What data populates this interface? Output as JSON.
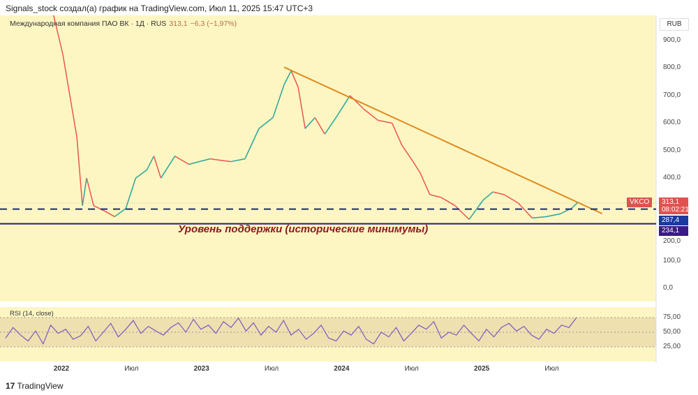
{
  "header": "Signals_stock создал(а) график на TradingView.com, Июл 11, 2025 15:47 UTC+3",
  "legend": {
    "name": "Международная компания ПАО ВК · 1Д · RUS",
    "price": "313,1",
    "change": "−6,3 (−1,97%)"
  },
  "currency": "RUB",
  "annotation": "Уровень поддержки (исторические минимумы)",
  "price_axis": [
    "900,0",
    "800,0",
    "700,0",
    "600,0",
    "500,0",
    "400,0",
    "200,0",
    "100,0",
    "0,0"
  ],
  "price_axis_values": [
    900,
    800,
    700,
    600,
    500,
    400,
    200,
    100,
    0
  ],
  "tags": {
    "ticker": "VKCO",
    "last": "313,1",
    "countdown": "08:02:21",
    "dashed_level": "287,4",
    "support_level": "234,1"
  },
  "rsi": {
    "label": "RSI (14, close)",
    "axis": [
      "75,00",
      "50,00",
      "25,00"
    ],
    "axis_values": [
      75,
      50,
      25
    ]
  },
  "time_axis": [
    {
      "t": "2022",
      "v": 2022.0,
      "b": true
    },
    {
      "t": "Июл",
      "v": 2022.5
    },
    {
      "t": "2023",
      "v": 2023.0,
      "b": true
    },
    {
      "t": "Июл",
      "v": 2023.5
    },
    {
      "t": "2024",
      "v": 2024.0,
      "b": true
    },
    {
      "t": "Июл",
      "v": 2024.5
    },
    {
      "t": "2025",
      "v": 2025.0,
      "b": true
    },
    {
      "t": "Июл",
      "v": 2025.5
    }
  ],
  "branding": "TradingView",
  "colors": {
    "bg": "#fdf6c3",
    "trend": "#e08a1e",
    "support": "#2a1a6e",
    "dashed": "#1a2a6e",
    "rsi": "#7e57c2",
    "up": "#26a69a",
    "down": "#ef5350",
    "last": "#e0524f",
    "dashed_tag": "#1a3aa0",
    "support_tag": "#3a1a8a"
  },
  "chart_data": {
    "type": "line",
    "title": "Международная компания ПАО ВК · 1Д",
    "ylabel": "RUB",
    "ylim": [
      0,
      950
    ],
    "x": [
      2021.94,
      2022.01,
      2022.06,
      2022.11,
      2022.15,
      2022.18,
      2022.23,
      2022.31,
      2022.38,
      2022.46,
      2022.53,
      2022.61,
      2022.66,
      2022.71,
      2022.81,
      2022.91,
      2023.06,
      2023.21,
      2023.31,
      2023.41,
      2023.51,
      2023.59,
      2023.64,
      2023.69,
      2023.74,
      2023.81,
      2023.88,
      2023.96,
      2024.06,
      2024.16,
      2024.26,
      2024.36,
      2024.43,
      2024.51,
      2024.56,
      2024.63,
      2024.71,
      2024.81,
      2024.91,
      2025.01,
      2025.08,
      2025.16,
      2025.26,
      2025.36,
      2025.46,
      2025.56,
      2025.64,
      2025.69
    ],
    "y": [
      1000,
      850,
      700,
      550,
      300,
      400,
      300,
      280,
      260,
      290,
      400,
      430,
      480,
      400,
      480,
      450,
      470,
      460,
      470,
      580,
      620,
      740,
      790,
      730,
      580,
      620,
      560,
      620,
      700,
      650,
      610,
      600,
      520,
      460,
      420,
      340,
      330,
      300,
      250,
      320,
      350,
      340,
      310,
      255,
      260,
      270,
      290,
      313.1
    ],
    "trendline": {
      "from": [
        2023.59,
        803
      ],
      "to": [
        2025.86,
        271
      ]
    },
    "levels": [
      287.4,
      234.1
    ]
  },
  "rsi_values": [
    40,
    58,
    45,
    35,
    52,
    30,
    62,
    48,
    55,
    38,
    44,
    60,
    35,
    50,
    65,
    42,
    55,
    70,
    48,
    60,
    52,
    45,
    58,
    66,
    50,
    72,
    55,
    62,
    48,
    68,
    58,
    74,
    52,
    66,
    45,
    60,
    50,
    70,
    45,
    55,
    38,
    48,
    62,
    40,
    35,
    52,
    45,
    60,
    38,
    30,
    50,
    42,
    58,
    35,
    48,
    62,
    55,
    68,
    40,
    50,
    45,
    62,
    48,
    35,
    55,
    42,
    58,
    65,
    52,
    60,
    45,
    38,
    55,
    48,
    62,
    58,
    75
  ]
}
